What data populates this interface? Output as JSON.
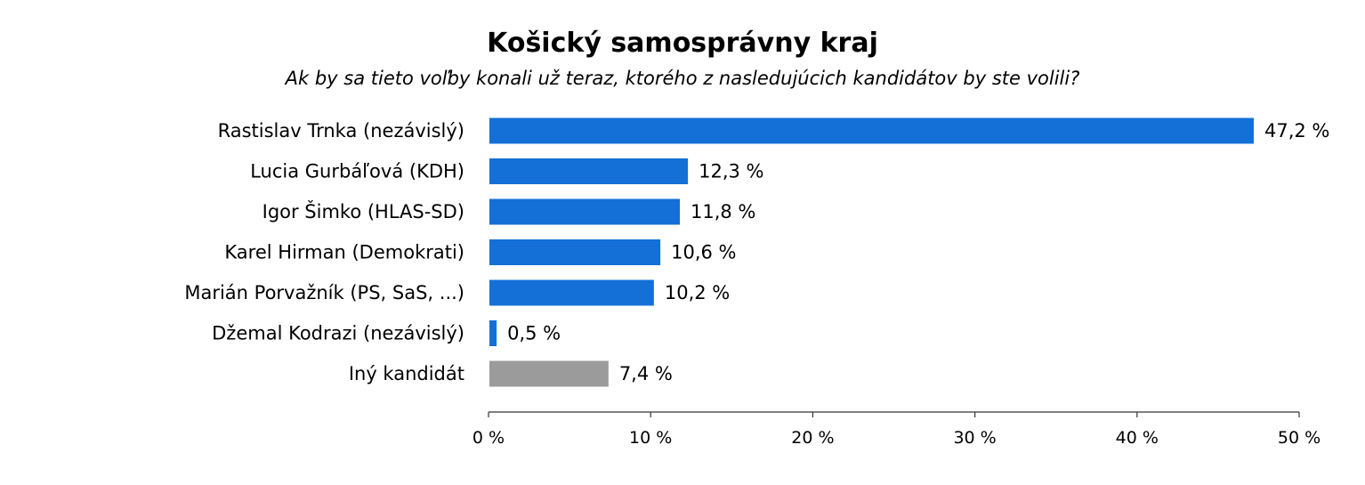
{
  "chart_data": {
    "type": "bar",
    "orientation": "horizontal",
    "title": "Košický samosprávny kraj",
    "subtitle": "Ak by sa tieto voľby konali už teraz, ktorého z nasledujúcich kandidátov by ste volili?",
    "categories": [
      "Rastislav Trnka (nezávislý)",
      "Lucia Gurbáľová (KDH)",
      "Igor Šimko (HLAS-SD)",
      "Karel Hirman (Demokrati)",
      "Marián Porvažník (PS, SaS, ...)",
      "Džemal Kodrazi (nezávislý)",
      "Iný kandidát"
    ],
    "values": [
      47.2,
      12.3,
      11.8,
      10.6,
      10.2,
      0.5,
      7.4
    ],
    "value_labels": [
      "47,2 %",
      "12,3 %",
      "11,8 %",
      "10,6 %",
      "10,2 %",
      "0,5 %",
      "7,4 %"
    ],
    "bar_colors": [
      "#1470D6",
      "#1470D6",
      "#1470D6",
      "#1470D6",
      "#1470D6",
      "#1470D6",
      "#9B9B9B"
    ],
    "xlim": [
      0,
      50
    ],
    "xticks": [
      0,
      10,
      20,
      30,
      40,
      50
    ],
    "xtick_labels": [
      "0 %",
      "10 %",
      "20 %",
      "30 %",
      "40 %",
      "50 %"
    ],
    "grid": false,
    "legend": "none"
  }
}
